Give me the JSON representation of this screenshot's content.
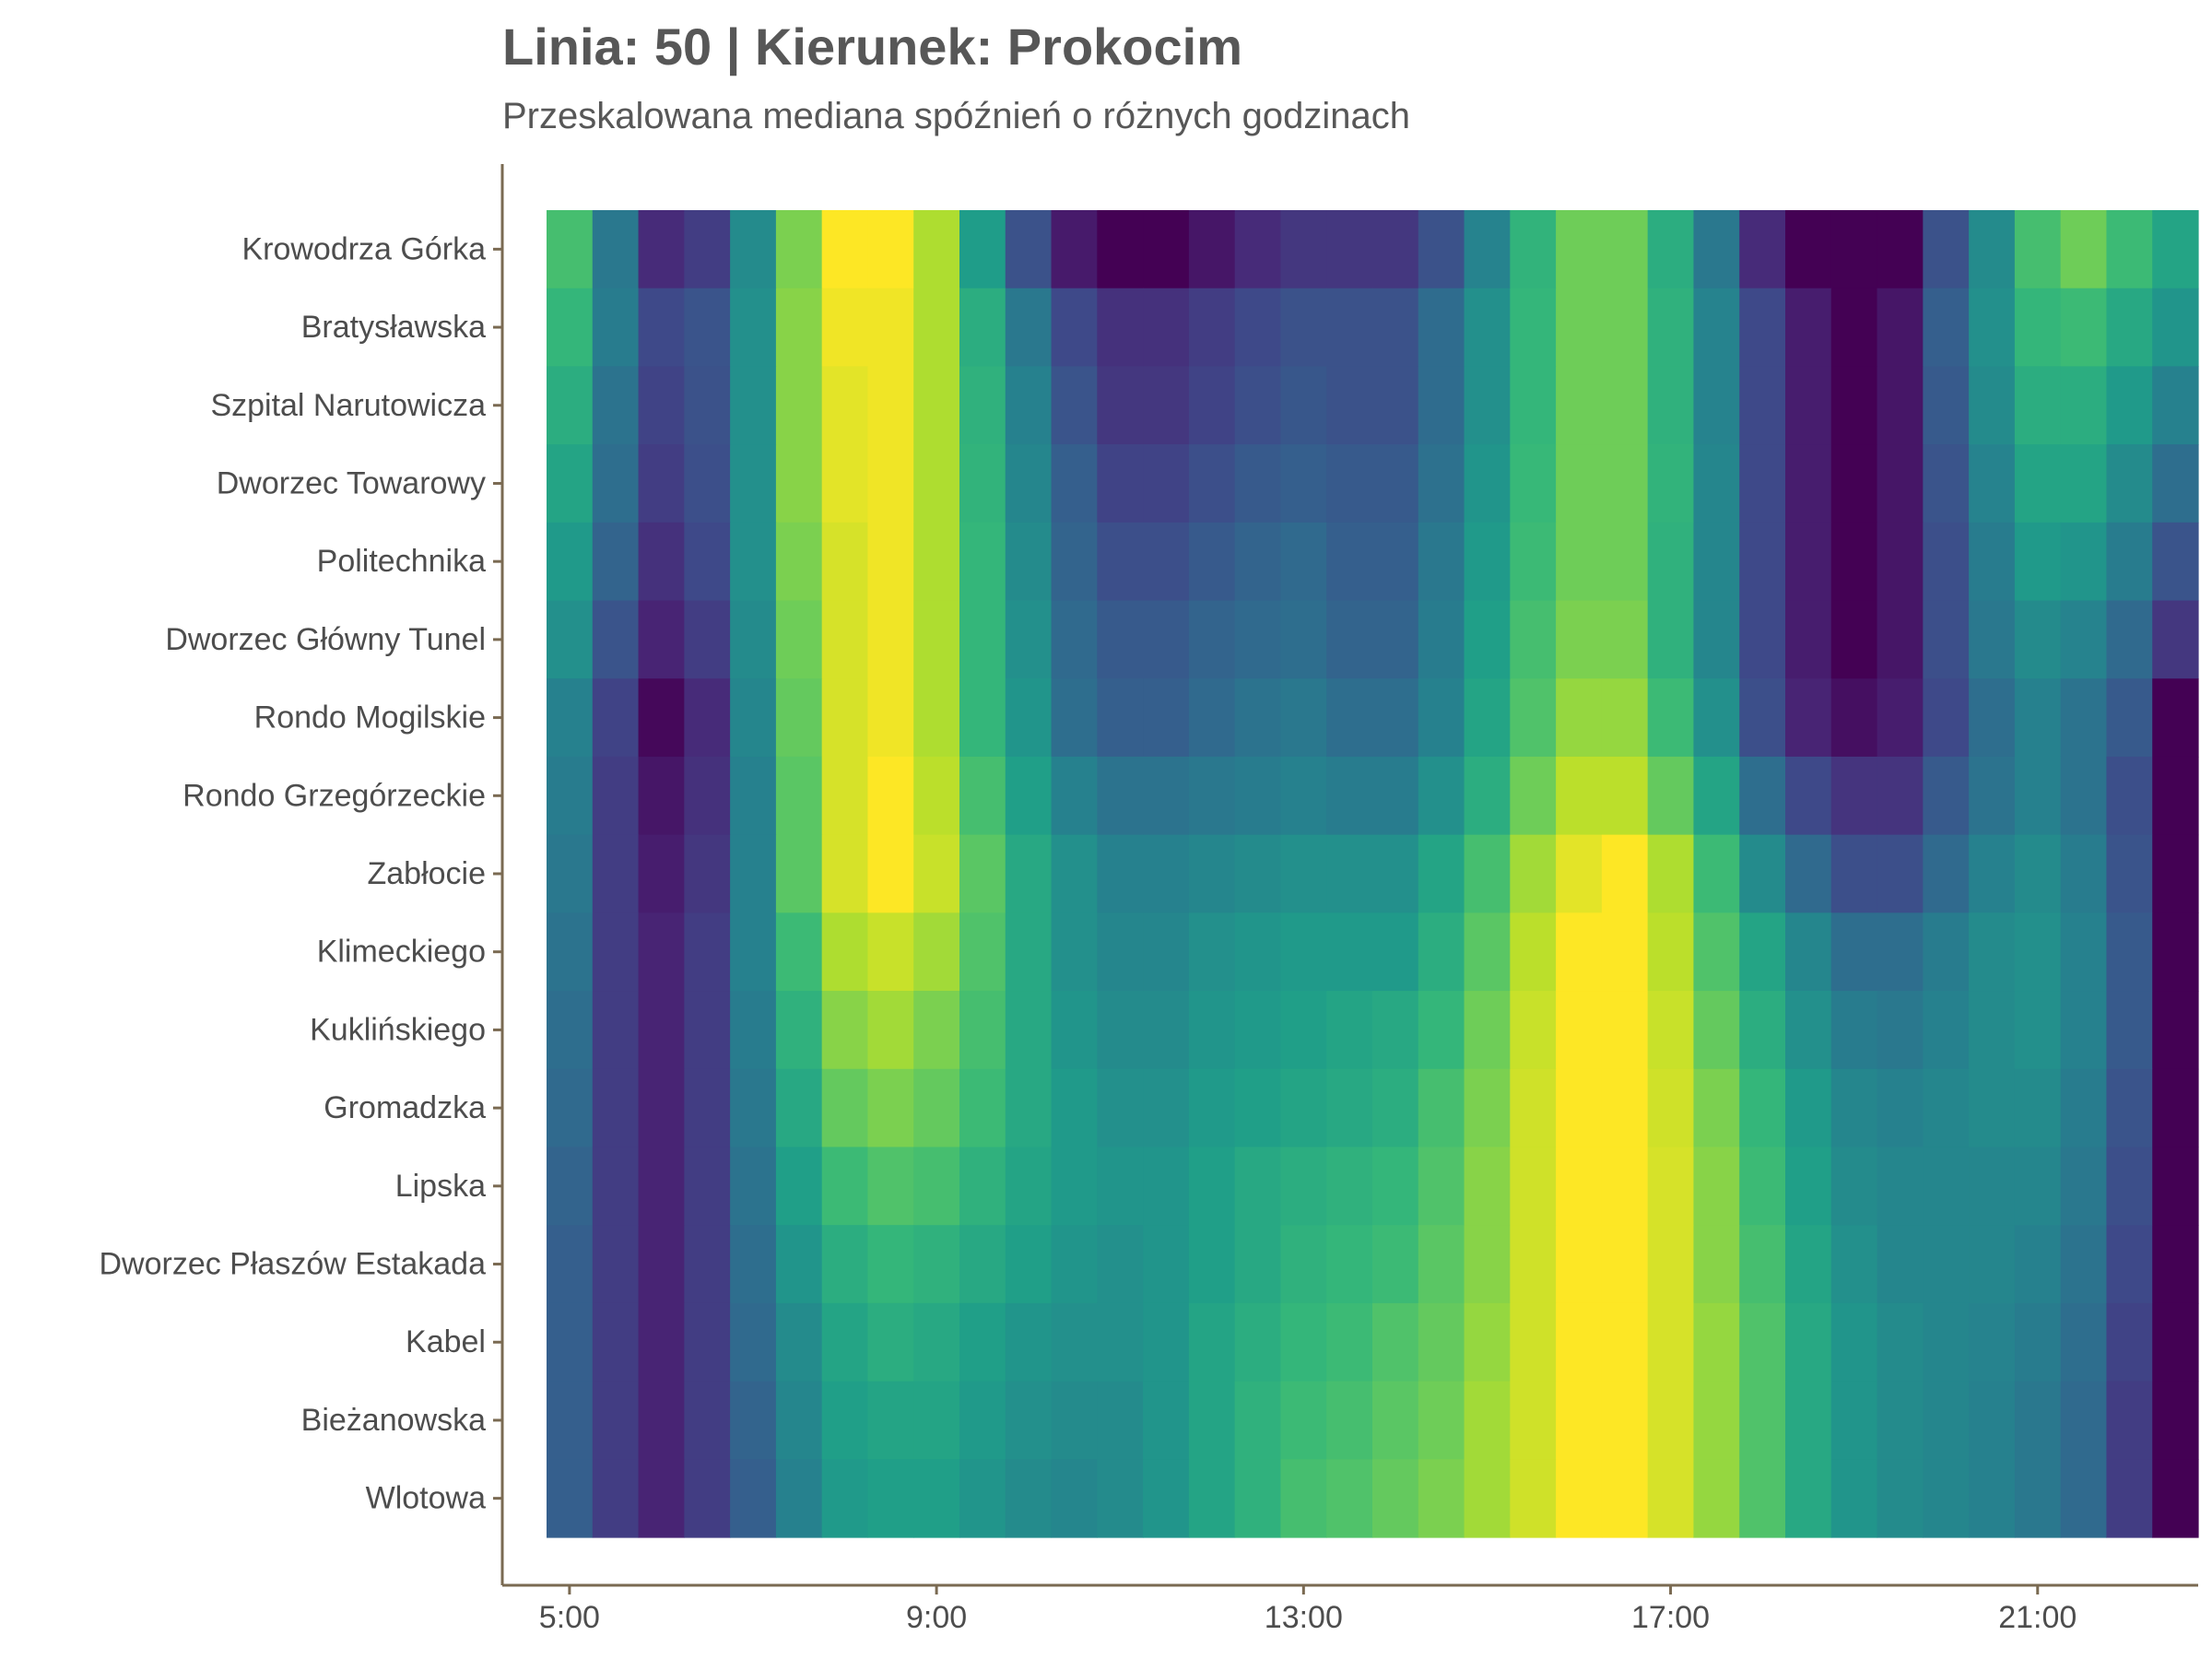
{
  "title": "Linia: 50 | Kierunek: Prokocim",
  "subtitle": "Przeskalowana mediana spóźnień o różnych godzinach",
  "axis_color": "#7a6a52",
  "palette": "viridis",
  "chart_data": {
    "type": "heatmap",
    "title": "Linia: 50 | Kierunek: Prokocim",
    "subtitle": "Przeskalowana mediana spóźnień o różnych godzinach",
    "xlabel": "",
    "ylabel": "",
    "x_ticks": [
      "5:00",
      "9:00",
      "13:00",
      "17:00",
      "21:00"
    ],
    "x_hours": [
      5.0,
      5.5,
      6.0,
      6.5,
      7.0,
      7.5,
      8.0,
      8.5,
      9.0,
      9.5,
      10.0,
      10.5,
      11.0,
      11.5,
      12.0,
      12.5,
      13.0,
      13.5,
      14.0,
      14.5,
      15.0,
      15.5,
      16.0,
      16.5,
      17.0,
      17.5,
      18.0,
      18.5,
      19.0,
      19.5,
      20.0,
      20.5,
      21.0,
      21.5,
      22.0,
      22.5
    ],
    "x_range": [
      4.75,
      22.75
    ],
    "stops": [
      "Krowodrza Górka",
      "Bratysławska",
      "Szpital Narutowicza",
      "Dworzec Towarowy",
      "Politechnika",
      "Dworzec Główny Tunel",
      "Rondo Mogilskie",
      "Rondo Grzegórzeckie",
      "Zabłocie",
      "Klimeckiego",
      "Kuklińskiego",
      "Gromadzka",
      "Lipska",
      "Dworzec Płaszów Estakada",
      "Kabel",
      "Bieżanowska",
      "Wlotowa"
    ],
    "values": [
      [
        0.7,
        0.4,
        0.12,
        0.18,
        0.48,
        0.8,
        1.0,
        1.0,
        0.88,
        0.55,
        0.25,
        0.07,
        0.0,
        0.0,
        0.06,
        0.12,
        0.16,
        0.16,
        0.16,
        0.25,
        0.45,
        0.65,
        0.78,
        0.78,
        0.62,
        0.4,
        0.12,
        0.0,
        0.0,
        0.0,
        0.25,
        0.48,
        0.7,
        0.78,
        0.68,
        0.58
      ],
      [
        0.66,
        0.42,
        0.22,
        0.26,
        0.5,
        0.82,
        0.98,
        0.98,
        0.88,
        0.62,
        0.4,
        0.22,
        0.14,
        0.14,
        0.18,
        0.22,
        0.25,
        0.25,
        0.25,
        0.35,
        0.5,
        0.66,
        0.78,
        0.78,
        0.64,
        0.45,
        0.22,
        0.08,
        0.0,
        0.06,
        0.3,
        0.5,
        0.66,
        0.68,
        0.6,
        0.52
      ],
      [
        0.62,
        0.38,
        0.2,
        0.25,
        0.5,
        0.82,
        0.96,
        0.98,
        0.88,
        0.64,
        0.44,
        0.26,
        0.16,
        0.16,
        0.2,
        0.24,
        0.27,
        0.25,
        0.25,
        0.35,
        0.5,
        0.66,
        0.78,
        0.78,
        0.64,
        0.45,
        0.22,
        0.08,
        0.0,
        0.06,
        0.28,
        0.48,
        0.62,
        0.62,
        0.54,
        0.44
      ],
      [
        0.58,
        0.36,
        0.18,
        0.24,
        0.5,
        0.82,
        0.96,
        0.98,
        0.88,
        0.65,
        0.46,
        0.3,
        0.2,
        0.2,
        0.24,
        0.28,
        0.3,
        0.28,
        0.28,
        0.37,
        0.52,
        0.67,
        0.78,
        0.78,
        0.65,
        0.46,
        0.22,
        0.08,
        0.0,
        0.06,
        0.26,
        0.45,
        0.58,
        0.58,
        0.48,
        0.36
      ],
      [
        0.54,
        0.32,
        0.14,
        0.22,
        0.5,
        0.8,
        0.94,
        0.98,
        0.88,
        0.66,
        0.48,
        0.32,
        0.24,
        0.24,
        0.28,
        0.32,
        0.34,
        0.3,
        0.3,
        0.4,
        0.54,
        0.68,
        0.78,
        0.78,
        0.64,
        0.46,
        0.22,
        0.08,
        0.0,
        0.06,
        0.24,
        0.42,
        0.54,
        0.52,
        0.42,
        0.26
      ],
      [
        0.5,
        0.26,
        0.1,
        0.18,
        0.48,
        0.78,
        0.94,
        0.98,
        0.88,
        0.66,
        0.5,
        0.34,
        0.28,
        0.28,
        0.32,
        0.34,
        0.36,
        0.32,
        0.32,
        0.42,
        0.56,
        0.7,
        0.8,
        0.8,
        0.64,
        0.46,
        0.22,
        0.08,
        0.0,
        0.06,
        0.24,
        0.4,
        0.48,
        0.45,
        0.34,
        0.16
      ],
      [
        0.44,
        0.2,
        0.02,
        0.12,
        0.46,
        0.76,
        0.94,
        0.98,
        0.88,
        0.66,
        0.52,
        0.36,
        0.3,
        0.3,
        0.34,
        0.38,
        0.4,
        0.36,
        0.36,
        0.44,
        0.58,
        0.72,
        0.84,
        0.84,
        0.68,
        0.5,
        0.24,
        0.1,
        0.04,
        0.08,
        0.22,
        0.36,
        0.44,
        0.38,
        0.28,
        0.0
      ],
      [
        0.42,
        0.18,
        0.06,
        0.14,
        0.44,
        0.74,
        0.94,
        1.0,
        0.9,
        0.7,
        0.56,
        0.44,
        0.38,
        0.38,
        0.4,
        0.42,
        0.44,
        0.42,
        0.42,
        0.5,
        0.62,
        0.78,
        0.9,
        0.9,
        0.76,
        0.58,
        0.36,
        0.22,
        0.15,
        0.15,
        0.28,
        0.38,
        0.44,
        0.38,
        0.24,
        0.0
      ],
      [
        0.4,
        0.18,
        0.08,
        0.16,
        0.44,
        0.74,
        0.94,
        1.0,
        0.92,
        0.74,
        0.6,
        0.5,
        0.44,
        0.44,
        0.46,
        0.48,
        0.5,
        0.5,
        0.5,
        0.58,
        0.7,
        0.86,
        0.96,
        1.0,
        0.88,
        0.68,
        0.48,
        0.34,
        0.24,
        0.24,
        0.34,
        0.44,
        0.48,
        0.42,
        0.26,
        0.0
      ],
      [
        0.38,
        0.18,
        0.1,
        0.18,
        0.44,
        0.68,
        0.88,
        0.92,
        0.86,
        0.72,
        0.6,
        0.5,
        0.46,
        0.46,
        0.5,
        0.52,
        0.54,
        0.54,
        0.54,
        0.62,
        0.74,
        0.9,
        1.0,
        1.0,
        0.9,
        0.72,
        0.58,
        0.46,
        0.36,
        0.36,
        0.42,
        0.48,
        0.5,
        0.44,
        0.28,
        0.0
      ],
      [
        0.36,
        0.18,
        0.1,
        0.18,
        0.42,
        0.64,
        0.82,
        0.86,
        0.8,
        0.7,
        0.6,
        0.52,
        0.48,
        0.48,
        0.52,
        0.54,
        0.56,
        0.58,
        0.6,
        0.66,
        0.78,
        0.92,
        1.0,
        1.0,
        0.92,
        0.76,
        0.62,
        0.5,
        0.42,
        0.4,
        0.44,
        0.48,
        0.5,
        0.44,
        0.28,
        0.0
      ],
      [
        0.34,
        0.18,
        0.1,
        0.18,
        0.4,
        0.6,
        0.76,
        0.8,
        0.76,
        0.68,
        0.6,
        0.54,
        0.5,
        0.5,
        0.54,
        0.56,
        0.58,
        0.6,
        0.62,
        0.7,
        0.8,
        0.93,
        1.0,
        1.0,
        0.93,
        0.8,
        0.66,
        0.54,
        0.46,
        0.44,
        0.46,
        0.48,
        0.48,
        0.42,
        0.26,
        0.0
      ],
      [
        0.32,
        0.18,
        0.1,
        0.18,
        0.38,
        0.56,
        0.68,
        0.72,
        0.7,
        0.64,
        0.58,
        0.54,
        0.52,
        0.52,
        0.56,
        0.6,
        0.62,
        0.64,
        0.66,
        0.72,
        0.82,
        0.93,
        1.0,
        1.0,
        0.94,
        0.82,
        0.68,
        0.56,
        0.48,
        0.46,
        0.46,
        0.46,
        0.46,
        0.4,
        0.24,
        0.0
      ],
      [
        0.3,
        0.18,
        0.1,
        0.18,
        0.36,
        0.52,
        0.62,
        0.66,
        0.64,
        0.6,
        0.56,
        0.52,
        0.5,
        0.52,
        0.56,
        0.6,
        0.64,
        0.66,
        0.68,
        0.74,
        0.82,
        0.93,
        1.0,
        1.0,
        0.94,
        0.82,
        0.7,
        0.58,
        0.5,
        0.46,
        0.46,
        0.46,
        0.44,
        0.38,
        0.22,
        0.0
      ],
      [
        0.3,
        0.18,
        0.1,
        0.18,
        0.34,
        0.48,
        0.58,
        0.62,
        0.6,
        0.56,
        0.52,
        0.5,
        0.5,
        0.52,
        0.58,
        0.62,
        0.66,
        0.68,
        0.72,
        0.76,
        0.84,
        0.93,
        1.0,
        1.0,
        0.94,
        0.84,
        0.72,
        0.6,
        0.52,
        0.48,
        0.46,
        0.45,
        0.42,
        0.36,
        0.2,
        0.0
      ],
      [
        0.3,
        0.18,
        0.1,
        0.18,
        0.32,
        0.46,
        0.56,
        0.58,
        0.58,
        0.54,
        0.5,
        0.48,
        0.48,
        0.52,
        0.58,
        0.64,
        0.68,
        0.7,
        0.74,
        0.78,
        0.86,
        0.93,
        1.0,
        1.0,
        0.94,
        0.84,
        0.72,
        0.6,
        0.52,
        0.48,
        0.46,
        0.44,
        0.4,
        0.34,
        0.18,
        0.0
      ],
      [
        0.3,
        0.18,
        0.1,
        0.18,
        0.3,
        0.44,
        0.54,
        0.56,
        0.56,
        0.52,
        0.48,
        0.46,
        0.48,
        0.52,
        0.58,
        0.64,
        0.7,
        0.72,
        0.76,
        0.8,
        0.86,
        0.93,
        1.0,
        1.0,
        0.94,
        0.84,
        0.72,
        0.6,
        0.52,
        0.48,
        0.46,
        0.44,
        0.4,
        0.34,
        0.18,
        0.0
      ]
    ]
  }
}
